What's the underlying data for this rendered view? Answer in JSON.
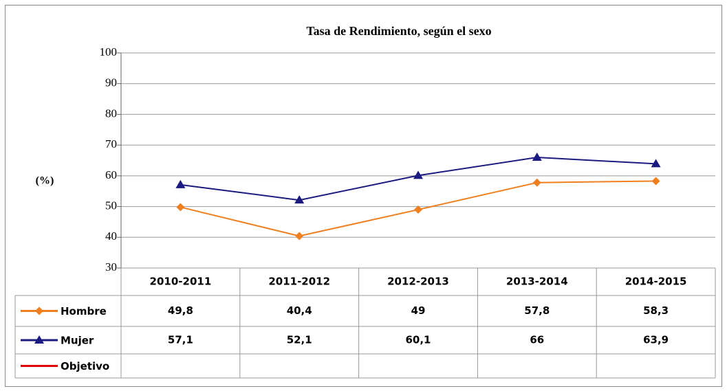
{
  "chart_data": {
    "type": "line",
    "title": "Tasa de Rendimiento, según el sexo",
    "ylabel": "(%)",
    "categories": [
      "2010-2011",
      "2011-2012",
      "2012-2013",
      "2013-2014",
      "2014-2015"
    ],
    "series": [
      {
        "name": "Hombre",
        "color": "#f07f1f",
        "marker": "diamond",
        "values": [
          49.8,
          40.4,
          49,
          57.8,
          58.3
        ],
        "value_labels": [
          "49,8",
          "40,4",
          "49",
          "57,8",
          "58,3"
        ]
      },
      {
        "name": "Mujer",
        "color": "#1a1a80",
        "marker": "triangle",
        "values": [
          57.1,
          52.1,
          60.1,
          66,
          63.9
        ],
        "value_labels": [
          "57,1",
          "52,1",
          "60,1",
          "66",
          "63,9"
        ]
      },
      {
        "name": "Objetivo",
        "color": "#e00000",
        "marker": "none",
        "values": [
          null,
          null,
          null,
          null,
          null
        ]
      }
    ],
    "ylim": [
      30,
      100
    ],
    "yticks": [
      30,
      40,
      50,
      60,
      70,
      80,
      90,
      100
    ],
    "grid": true,
    "data_table": true
  }
}
